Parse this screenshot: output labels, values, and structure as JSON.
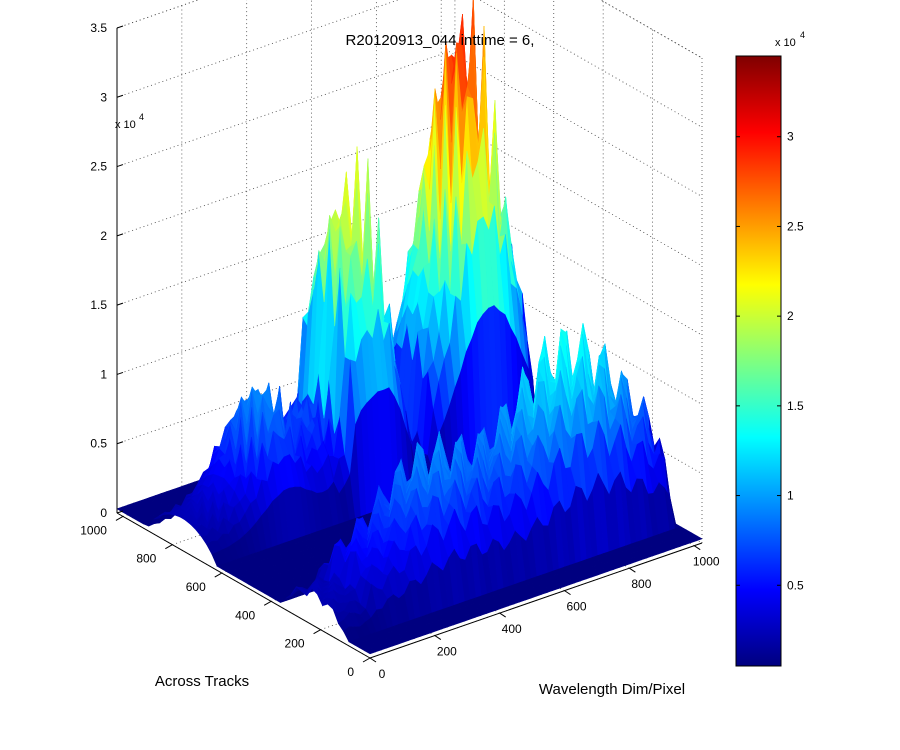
{
  "chart_data": {
    "type": "surface3d",
    "title": "R20120913_044 inttime = 6,",
    "xlabel": "Wavelength Dim/Pixel",
    "ylabel": "Across Tracks",
    "z_exponent_label": "x 10",
    "z_exponent_power": "4",
    "x_ticks": [
      "0",
      "200",
      "400",
      "600",
      "800",
      "1000"
    ],
    "x_tick_values": [
      0,
      200,
      400,
      600,
      800,
      1000
    ],
    "y_ticks": [
      "0",
      "200",
      "400",
      "600",
      "800",
      "1000"
    ],
    "y_tick_values": [
      0,
      200,
      400,
      600,
      800,
      1000
    ],
    "z_ticks": [
      "0",
      "0.5",
      "1",
      "1.5",
      "2",
      "2.5",
      "3",
      "3.5"
    ],
    "z_tick_values": [
      0,
      0.5,
      1,
      1.5,
      2,
      2.5,
      3,
      3.5
    ],
    "xlim": [
      0,
      1024
    ],
    "ylim": [
      0,
      1024
    ],
    "zlim": [
      0,
      3.5
    ],
    "grid": true,
    "colormap": "jet",
    "colorbar": {
      "ticks": [
        "0.5",
        "1",
        "1.5",
        "2",
        "2.5",
        "3"
      ],
      "tick_values": [
        0.5,
        1,
        1.5,
        2,
        2.5,
        3
      ],
      "range": [
        0.05,
        3.45
      ],
      "exponent_label": "x 10",
      "exponent_power": "4"
    },
    "bands": [
      {
        "x_range": [
          0,
          1024
        ],
        "y_range": [
          620,
          900
        ],
        "peak": 3.45,
        "x_peak": [
          700,
          980
        ],
        "note_hidden": false
      },
      {
        "x_range": [
          0,
          1024
        ],
        "y_range": [
          90,
          360
        ],
        "peak": 1.75,
        "x_peak": [
          500,
          1000
        ],
        "note_hidden": false
      }
    ]
  }
}
